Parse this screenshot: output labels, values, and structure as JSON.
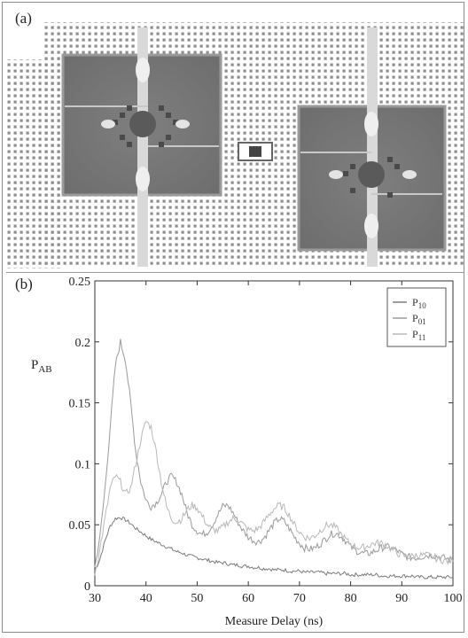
{
  "figure": {
    "panel_a_label": "(a)",
    "panel_b_label": "(b)"
  },
  "chart_data": {
    "type": "line",
    "xlabel": "Measure Delay (ns)",
    "ylabel": "P",
    "ylabel_sub": "AB",
    "xlim": [
      30,
      100
    ],
    "ylim": [
      0,
      0.25
    ],
    "xticks": [
      "30",
      "40",
      "50",
      "60",
      "70",
      "80",
      "90",
      "100"
    ],
    "yticks": [
      "0",
      "0.05",
      "0.1",
      "0.15",
      "0.2",
      "0.25"
    ],
    "legend_position": "top-right",
    "grid": false,
    "series": [
      {
        "name": "P",
        "name_sub": "10",
        "color": "#7a7a7a",
        "x": [
          30,
          31,
          32,
          33,
          34,
          35,
          36,
          37,
          38,
          39,
          40,
          41,
          42,
          43,
          44,
          45,
          46,
          47,
          48,
          49,
          50,
          51,
          52,
          53,
          54,
          55,
          56,
          57,
          58,
          59,
          60,
          61,
          62,
          63,
          64,
          65,
          66,
          67,
          68,
          69,
          70,
          71,
          72,
          73,
          74,
          75,
          76,
          77,
          78,
          79,
          80,
          81,
          82,
          83,
          84,
          85,
          86,
          87,
          88,
          89,
          90,
          91,
          92,
          93,
          94,
          95,
          96,
          97,
          98,
          99,
          100
        ],
        "values": [
          0.012,
          0.022,
          0.037,
          0.049,
          0.055,
          0.056,
          0.054,
          0.051,
          0.047,
          0.044,
          0.041,
          0.038,
          0.036,
          0.034,
          0.032,
          0.03,
          0.028,
          0.027,
          0.025,
          0.024,
          0.023,
          0.022,
          0.021,
          0.02,
          0.019,
          0.019,
          0.018,
          0.017,
          0.017,
          0.016,
          0.016,
          0.015,
          0.015,
          0.014,
          0.014,
          0.013,
          0.013,
          0.013,
          0.012,
          0.012,
          0.012,
          0.011,
          0.011,
          0.011,
          0.011,
          0.01,
          0.01,
          0.01,
          0.01,
          0.01,
          0.009,
          0.009,
          0.009,
          0.009,
          0.009,
          0.009,
          0.008,
          0.008,
          0.008,
          0.008,
          0.008,
          0.008,
          0.008,
          0.007,
          0.007,
          0.007,
          0.007,
          0.007,
          0.007,
          0.007,
          0.007
        ]
      },
      {
        "name": "P",
        "name_sub": "01",
        "color": "#9a9a9a",
        "x": [
          30,
          31,
          32,
          33,
          34,
          35,
          36,
          37,
          38,
          39,
          40,
          41,
          42,
          43,
          44,
          45,
          46,
          47,
          48,
          49,
          50,
          51,
          52,
          53,
          54,
          55,
          56,
          57,
          58,
          59,
          60,
          61,
          62,
          63,
          64,
          65,
          66,
          67,
          68,
          69,
          70,
          71,
          72,
          73,
          74,
          75,
          76,
          77,
          78,
          79,
          80,
          81,
          82,
          83,
          84,
          85,
          86,
          87,
          88,
          89,
          90,
          91,
          92,
          93,
          94,
          95,
          96,
          97,
          98,
          99,
          100
        ],
        "values": [
          0.015,
          0.04,
          0.08,
          0.13,
          0.18,
          0.2,
          0.185,
          0.15,
          0.11,
          0.085,
          0.07,
          0.065,
          0.068,
          0.075,
          0.085,
          0.09,
          0.085,
          0.075,
          0.06,
          0.05,
          0.045,
          0.042,
          0.044,
          0.05,
          0.058,
          0.065,
          0.066,
          0.06,
          0.052,
          0.045,
          0.04,
          0.037,
          0.036,
          0.039,
          0.045,
          0.051,
          0.055,
          0.053,
          0.047,
          0.04,
          0.035,
          0.031,
          0.03,
          0.031,
          0.034,
          0.038,
          0.042,
          0.043,
          0.041,
          0.037,
          0.032,
          0.029,
          0.027,
          0.026,
          0.027,
          0.029,
          0.031,
          0.032,
          0.031,
          0.029,
          0.026,
          0.024,
          0.023,
          0.023,
          0.024,
          0.025,
          0.025,
          0.024,
          0.023,
          0.022,
          0.021
        ]
      },
      {
        "name": "P",
        "name_sub": "11",
        "color": "#b8b8b8",
        "x": [
          30,
          31,
          32,
          33,
          34,
          35,
          36,
          37,
          38,
          39,
          40,
          41,
          42,
          43,
          44,
          45,
          46,
          47,
          48,
          49,
          50,
          51,
          52,
          53,
          54,
          55,
          56,
          57,
          58,
          59,
          60,
          61,
          62,
          63,
          64,
          65,
          66,
          67,
          68,
          69,
          70,
          71,
          72,
          73,
          74,
          75,
          76,
          77,
          78,
          79,
          80,
          81,
          82,
          83,
          84,
          85,
          86,
          87,
          88,
          89,
          90,
          91,
          92,
          93,
          94,
          95,
          96,
          97,
          98,
          99,
          100
        ],
        "values": [
          0.01,
          0.03,
          0.055,
          0.08,
          0.09,
          0.085,
          0.075,
          0.08,
          0.1,
          0.12,
          0.135,
          0.13,
          0.11,
          0.085,
          0.065,
          0.055,
          0.052,
          0.055,
          0.062,
          0.066,
          0.064,
          0.057,
          0.05,
          0.046,
          0.045,
          0.048,
          0.052,
          0.055,
          0.054,
          0.05,
          0.046,
          0.045,
          0.047,
          0.052,
          0.058,
          0.063,
          0.066,
          0.064,
          0.058,
          0.05,
          0.044,
          0.04,
          0.039,
          0.041,
          0.045,
          0.049,
          0.05,
          0.048,
          0.043,
          0.038,
          0.034,
          0.032,
          0.031,
          0.032,
          0.034,
          0.035,
          0.035,
          0.033,
          0.03,
          0.027,
          0.025,
          0.024,
          0.024,
          0.025,
          0.025,
          0.025,
          0.024,
          0.022,
          0.021,
          0.02,
          0.02
        ]
      }
    ]
  }
}
